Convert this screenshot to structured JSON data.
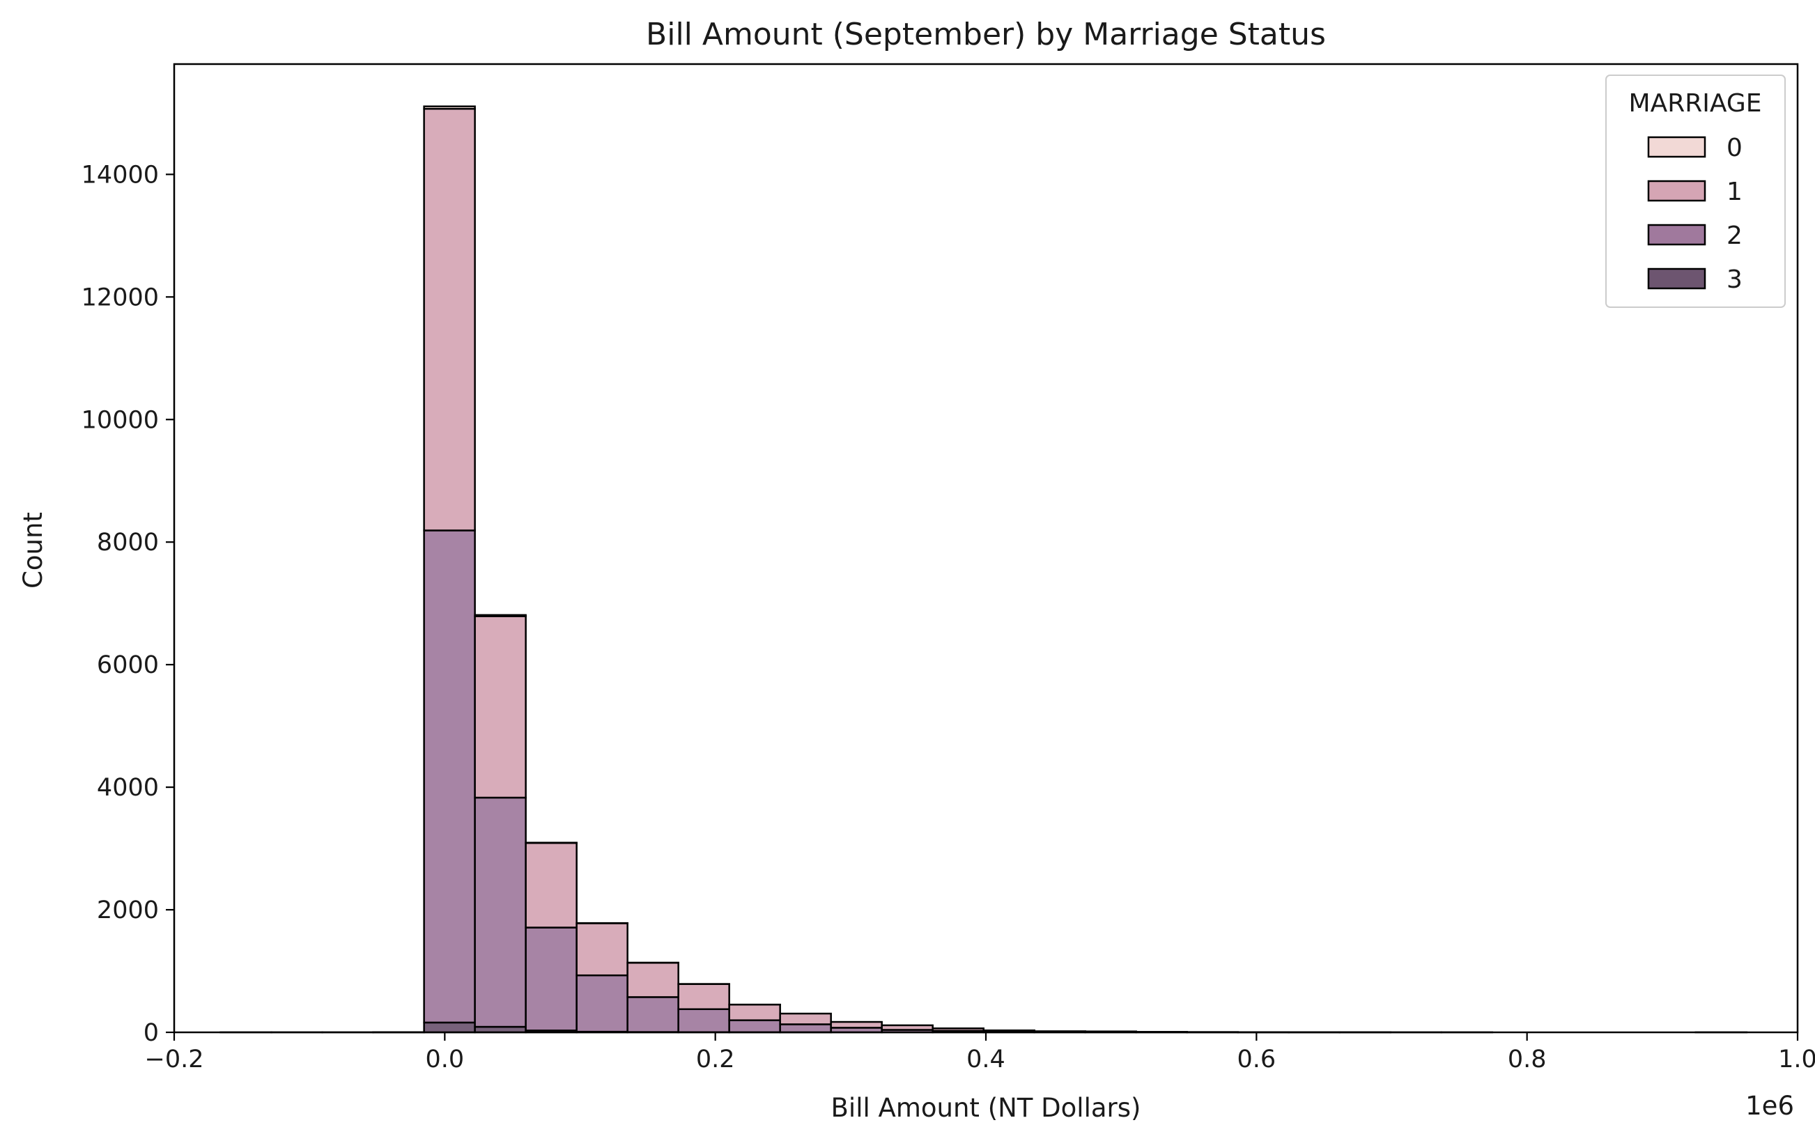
{
  "chart_data": {
    "type": "histogram-stacked",
    "title": "Bill Amount (September) by Marriage Status",
    "xlabel": "Bill Amount (NT Dollars)",
    "ylabel": "Count",
    "x_offset_label": "1e6",
    "xlim": [
      -0.2,
      1.0
    ],
    "ylim": [
      0,
      15800
    ],
    "xticks": [
      -0.2,
      0.0,
      0.2,
      0.4,
      0.6,
      0.8,
      1.0
    ],
    "xtick_labels": [
      "−0.2",
      "0.0",
      "0.2",
      "0.4",
      "0.6",
      "0.8",
      "1.0"
    ],
    "yticks": [
      0,
      2000,
      4000,
      6000,
      8000,
      10000,
      12000,
      14000
    ],
    "grid": false,
    "legend": {
      "title": "MARRIAGE",
      "position": "top-right"
    },
    "bin_edges": [
      -0.1657,
      -0.1281,
      -0.0905,
      -0.0529,
      -0.0153,
      0.0223,
      0.0599,
      0.0975,
      0.1351,
      0.1727,
      0.2103,
      0.2479,
      0.2855,
      0.3231,
      0.3607,
      0.3983,
      0.4359,
      0.4735,
      0.5111,
      0.5487,
      0.5863,
      0.6239,
      0.6615,
      0.6991,
      0.7367,
      0.7743,
      0.8119,
      0.8495,
      0.8871,
      0.9247,
      0.9623
    ],
    "series": [
      {
        "name": "0",
        "color": "#f2d9d6",
        "values": [
          0,
          0,
          0,
          0,
          40,
          20,
          5,
          3,
          2,
          1,
          1,
          0,
          0,
          0,
          0,
          0,
          0,
          0,
          0,
          0,
          0,
          0,
          0,
          0,
          0,
          0,
          0,
          0,
          0,
          0
        ]
      },
      {
        "name": "1",
        "color": "#d5a5b4",
        "values": [
          1,
          1,
          1,
          2,
          6880,
          2960,
          1380,
          850,
          560,
          410,
          255,
          175,
          95,
          75,
          40,
          20,
          12,
          10,
          5,
          3,
          2,
          1,
          1,
          1,
          1,
          0,
          0,
          0,
          0,
          1
        ]
      },
      {
        "name": "2",
        "color": "#a0799d",
        "values": [
          0,
          0,
          0,
          1,
          8030,
          3740,
          1680,
          920,
          570,
          375,
          195,
          130,
          75,
          40,
          25,
          12,
          6,
          5,
          3,
          2,
          1,
          1,
          1,
          0,
          0,
          0,
          0,
          0,
          0,
          0
        ]
      },
      {
        "name": "3",
        "color": "#6d5570",
        "values": [
          0,
          0,
          0,
          0,
          160,
          90,
          30,
          10,
          5,
          3,
          2,
          1,
          0,
          0,
          0,
          0,
          0,
          0,
          0,
          0,
          0,
          0,
          0,
          0,
          0,
          0,
          0,
          0,
          0,
          0
        ]
      }
    ]
  }
}
